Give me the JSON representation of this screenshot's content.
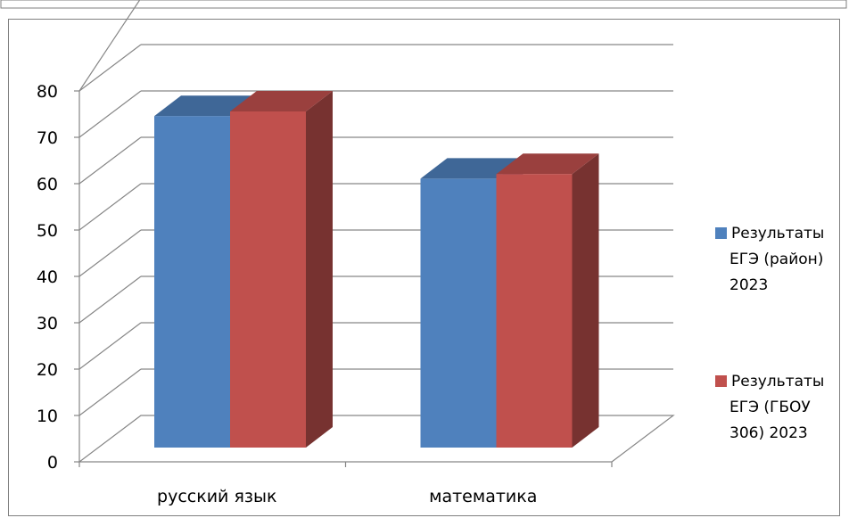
{
  "chart_data": {
    "type": "bar",
    "style": "3d-clustered-column",
    "categories": [
      "русский язык",
      "математика"
    ],
    "series": [
      {
        "name": "Результаты ЕГЭ (район) 2023",
        "values": [
          71.5,
          58
        ],
        "color": "#4f81bd"
      },
      {
        "name": "Результаты ЕГЭ (ГБОУ 306) 2023",
        "values": [
          72.5,
          59
        ],
        "color": "#c0504d"
      }
    ],
    "title": "",
    "xlabel": "",
    "ylabel": "",
    "ylim": [
      0,
      80
    ],
    "yticks": [
      "0",
      "10",
      "20",
      "30",
      "40",
      "50",
      "60",
      "70",
      "80"
    ],
    "grid": true,
    "legend": "right",
    "legend_lines": [
      [
        "Результаты",
        "ЕГЭ (район)",
        "2023"
      ],
      [
        "Результаты",
        "ЕГЭ (ГБОУ",
        "306) 2023"
      ]
    ]
  }
}
